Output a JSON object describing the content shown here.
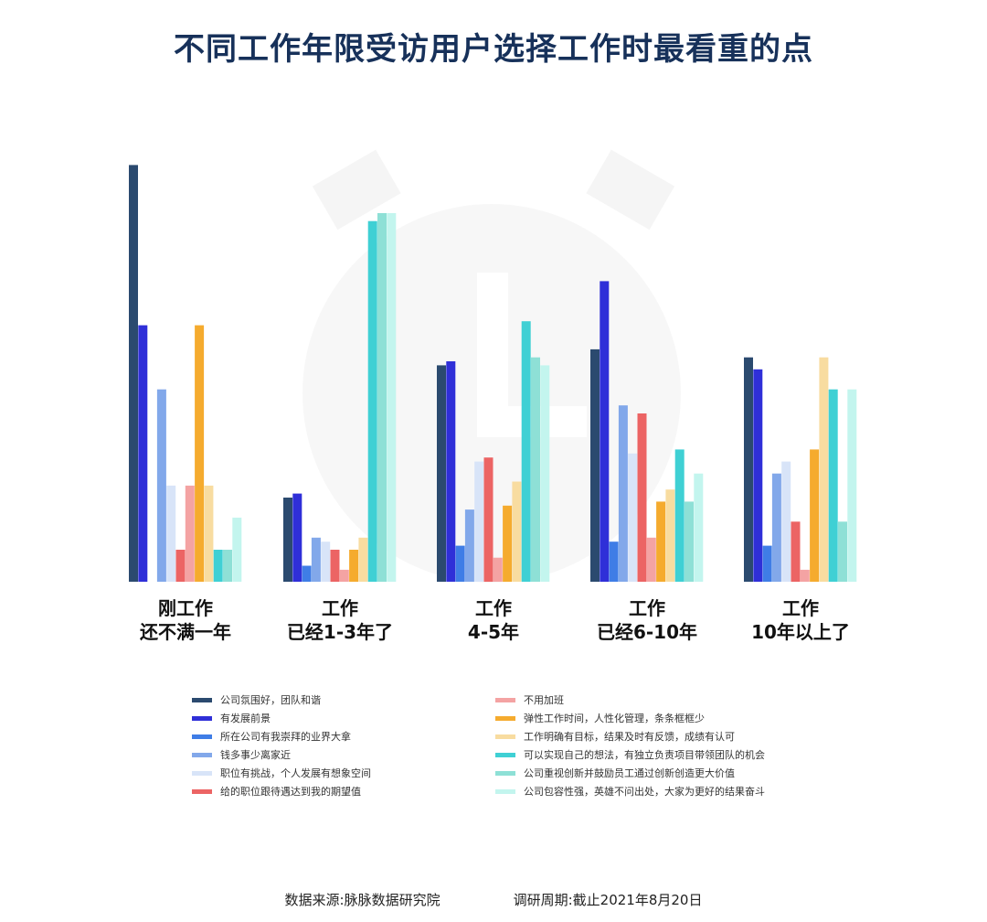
{
  "title": "不同工作年限受访用户选择工作时最看重的点",
  "footer": {
    "source": "数据来源:脉脉数据研究院",
    "period": "调研周期:截止2021年8月20日"
  },
  "groups": [
    {
      "line1": "刚工作",
      "line2": "还不满一年"
    },
    {
      "line1": "工作",
      "line2": "已经1-3年了"
    },
    {
      "line1": "工作",
      "line2": "4-5年"
    },
    {
      "line1": "工作",
      "line2": "已经6-10年"
    },
    {
      "line1": "工作",
      "line2": "10年以上了"
    }
  ],
  "legend": [
    {
      "label": "公司氛围好，团队和谐",
      "color": "#2b4a6f"
    },
    {
      "label": "有发展前景",
      "color": "#2f2fd8"
    },
    {
      "label": "所在公司有我崇拜的业界大拿",
      "color": "#3f7de6"
    },
    {
      "label": "钱多事少离家近",
      "color": "#82a8ea"
    },
    {
      "label": "职位有挑战，个人发展有想象空间",
      "color": "#d8e4f8"
    },
    {
      "label": "给的职位跟待遇达到我的期望值",
      "color": "#ec6464"
    },
    {
      "label": "不用加班",
      "color": "#f4a3a3"
    },
    {
      "label": "弹性工作时间，人性化管理，条条框框少",
      "color": "#f5ab2e"
    },
    {
      "label": "工作明确有目标，结果及时有反馈，成绩有认可",
      "color": "#f8dca0"
    },
    {
      "label": "可以实现自己的想法，有独立负责项目带领团队的机会",
      "color": "#3fd0d4"
    },
    {
      "label": "公司重视创新并鼓励员工通过创新创造更大价值",
      "color": "#8ee0d6"
    },
    {
      "label": "公司包容性强，英雄不问出处，大家为更好的结果奋斗",
      "color": "#c3f5ee"
    }
  ],
  "chart_data": {
    "type": "bar",
    "title": "不同工作年限受访用户选择工作时最看重的点",
    "categories": [
      "刚工作 还不满一年",
      "工作 已经1-3年了",
      "工作 4-5年",
      "工作 已经6-10年",
      "工作 10年以上了"
    ],
    "y_axis": "relative (no axis printed)",
    "ylim": [
      0,
      105
    ],
    "grid": false,
    "legend_position": "bottom",
    "series": [
      {
        "name": "公司氛围好，团队和谐",
        "values": [
          104,
          21,
          54,
          58,
          56
        ]
      },
      {
        "name": "有发展前景",
        "values": [
          64,
          22,
          55,
          75,
          53
        ]
      },
      {
        "name": "所在公司有我崇拜的业界大拿",
        "values": [
          0,
          4,
          9,
          10,
          9
        ]
      },
      {
        "name": "钱多事少离家近",
        "values": [
          48,
          11,
          18,
          44,
          27
        ]
      },
      {
        "name": "职位有挑战，个人发展有想象空间",
        "values": [
          24,
          10,
          30,
          32,
          30
        ]
      },
      {
        "name": "给的职位跟待遇达到我的期望值",
        "values": [
          8,
          8,
          31,
          42,
          15
        ]
      },
      {
        "name": "不用加班",
        "values": [
          24,
          3,
          6,
          11,
          3
        ]
      },
      {
        "name": "弹性工作时间，人性化管理，条条框框少",
        "values": [
          64,
          8,
          19,
          20,
          33
        ]
      },
      {
        "name": "工作明确有目标，结果及时有反馈，成绩有认可",
        "values": [
          24,
          11,
          25,
          23,
          56
        ]
      },
      {
        "name": "可以实现自己的想法，有独立负责项目带领团队的机会",
        "values": [
          8,
          90,
          65,
          33,
          48
        ]
      },
      {
        "name": "公司重视创新并鼓励员工通过创新创造更大价值",
        "values": [
          8,
          92,
          56,
          20,
          15
        ]
      },
      {
        "name": "公司包容性强，英雄不问出处，大家为更好的结果奋斗",
        "values": [
          16,
          92,
          54,
          27,
          48
        ]
      }
    ]
  }
}
